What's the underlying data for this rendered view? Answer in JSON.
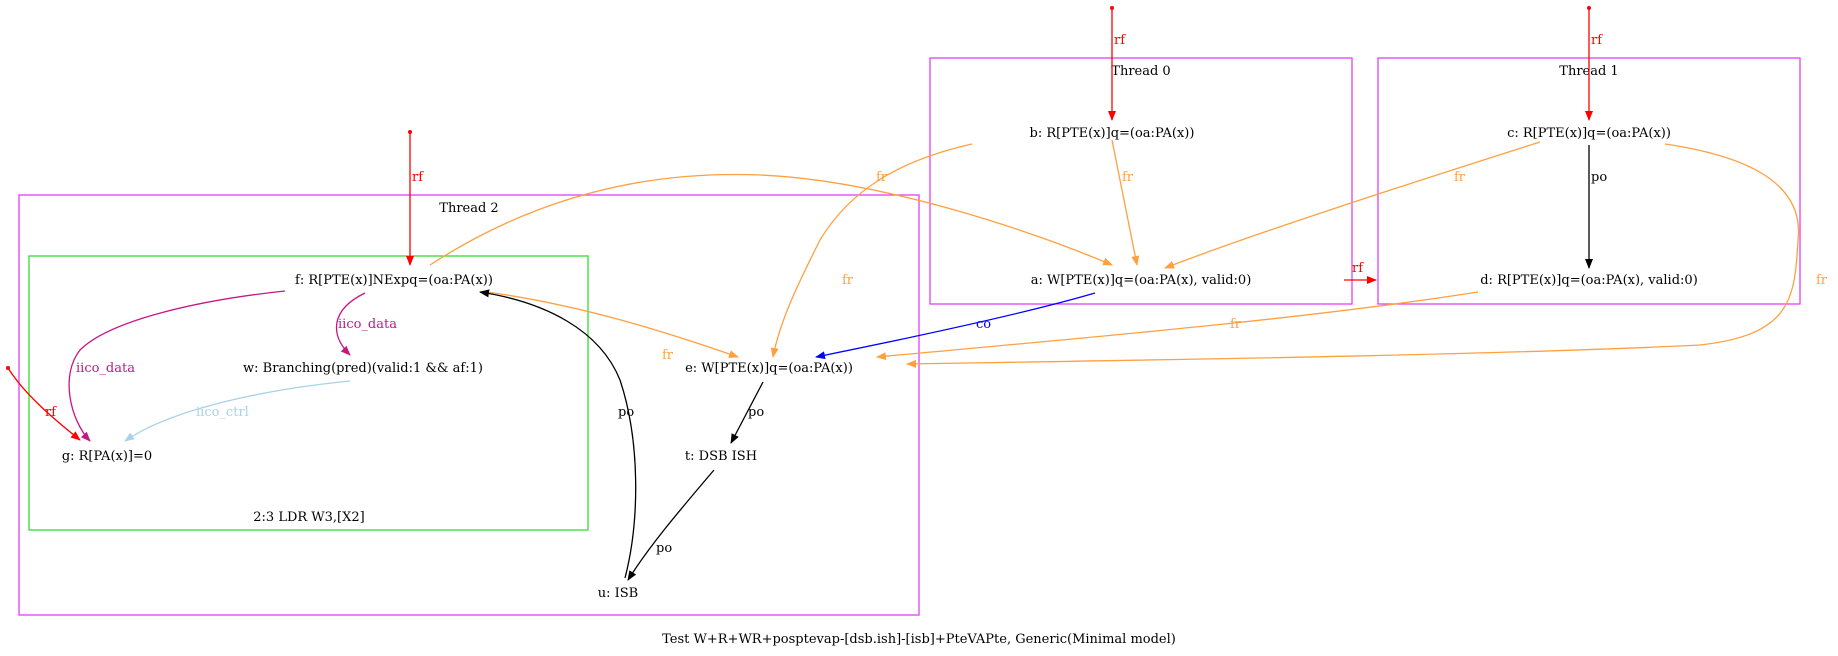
{
  "caption": "Test W+R+WR+posptevap-[dsb.ish]-[isb]+PteVAPte, Generic(Minimal model)",
  "clusters": {
    "thread0": "Thread 0",
    "thread1": "Thread 1",
    "thread2": "Thread 2",
    "instr": "2:3 LDR W3,[X2]"
  },
  "nodes": {
    "a": "a: W[PTE(x)]q=(oa:PA(x), valid:0)",
    "b": "b: R[PTE(x)]q=(oa:PA(x))",
    "c": "c: R[PTE(x)]q=(oa:PA(x))",
    "d": "d: R[PTE(x)]q=(oa:PA(x), valid:0)",
    "e": "e: W[PTE(x)]q=(oa:PA(x))",
    "f": "f: R[PTE(x)]NExpq=(oa:PA(x))",
    "w": "w: Branching(pred)(valid:1 && af:1)",
    "g": "g: R[PA(x)]=0",
    "t": "t: DSB ISH",
    "u": "u: ISB"
  },
  "edge_labels": {
    "rf": "rf",
    "fr": "fr",
    "po": "po",
    "co": "co",
    "iico_data": "iico_data",
    "iico_ctrl": "iico_ctrl"
  },
  "colors": {
    "rf": "#ff0000",
    "fr": "#ffa040",
    "po": "#000000",
    "co": "#0000ff",
    "iico_data": "#c71585",
    "iico_ctrl": "#a8d3e6",
    "thread_box": "#e040fb",
    "instr_box": "#33dd33"
  }
}
